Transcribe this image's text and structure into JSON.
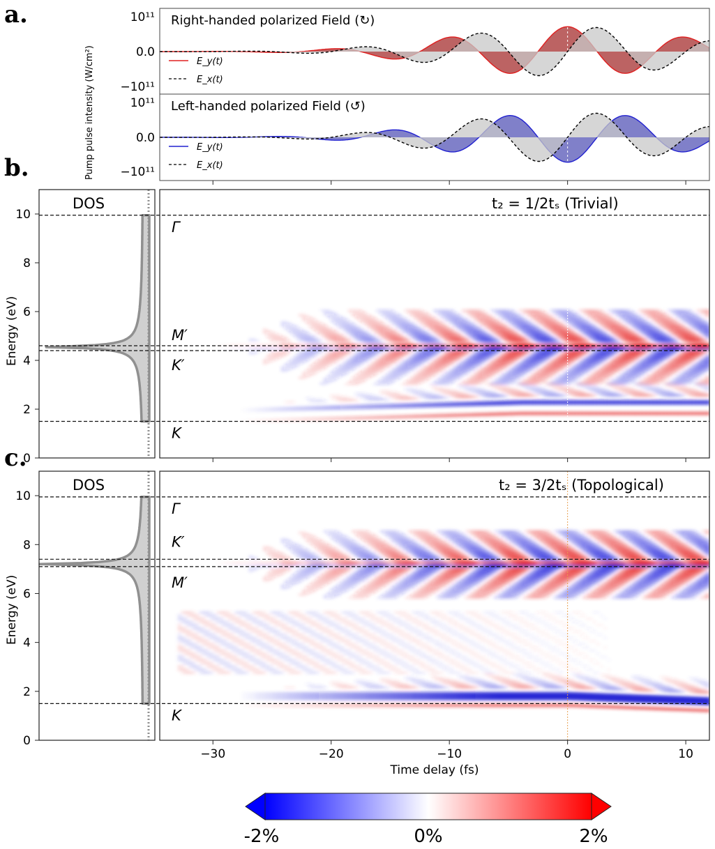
{
  "panel_labels": [
    "a.",
    "b.",
    "c."
  ],
  "chart_data": [
    {
      "type": "line",
      "panel": "a-top",
      "title": "Right-handed polarized Field (↻)",
      "ylabel": "Pump pulse intensity (W/cm²)",
      "y_ticks": [
        "10¹¹",
        "0.0",
        "−10¹¹"
      ],
      "xlim": [
        -34.5,
        12
      ],
      "ylim": [
        -1.4,
        1.4
      ],
      "series": [
        {
          "name": "E_y(t)",
          "color": "#e02020",
          "style": "solid",
          "fill": "#b04848",
          "amplitude": 1.0,
          "period_fs": 10,
          "phase": 0,
          "envelope_center_fs": 0,
          "envelope_width_fs": 10
        },
        {
          "name": "E_x(t)",
          "color": "#000000",
          "style": "dashed",
          "fill": "#c8c8c8",
          "amplitude": 1.0,
          "period_fs": 10,
          "phase": -1.5708,
          "envelope_center_fs": 0,
          "envelope_width_fs": 10
        }
      ],
      "legend": [
        "E_y(t)",
        "E_x(t)"
      ],
      "legend_position": "lower-left"
    },
    {
      "type": "line",
      "panel": "a-bottom",
      "title": "Left-handed polarized Field (↺)",
      "y_ticks": [
        "10¹¹",
        "0.0",
        "−10¹¹"
      ],
      "xlim": [
        -34.5,
        12
      ],
      "ylim": [
        -1.4,
        1.4
      ],
      "series": [
        {
          "name": "E_y(t)",
          "color": "#2020d0",
          "style": "solid",
          "fill": "#6a6ac0",
          "amplitude": 1.0,
          "period_fs": 10,
          "phase": 3.1416,
          "envelope_center_fs": 0,
          "envelope_width_fs": 10
        },
        {
          "name": "E_x(t)",
          "color": "#000000",
          "style": "dashed",
          "fill": "#c8c8c8",
          "amplitude": 1.0,
          "period_fs": 10,
          "phase": -1.5708,
          "envelope_center_fs": 0,
          "envelope_width_fs": 10
        }
      ],
      "legend": [
        "E_y(t)",
        "E_x(t)"
      ],
      "legend_position": "lower-left"
    },
    {
      "type": "heatmap",
      "panel": "b",
      "title": "t₂ = 1/2tₛ (Trivial)",
      "xlabel": "",
      "ylabel": "Energy (eV)",
      "xlim": [
        -34.5,
        12
      ],
      "ylim": [
        0,
        11
      ],
      "y_ticks": [
        0,
        2,
        4,
        6,
        8,
        10
      ],
      "dos_label": "DOS",
      "levels": [
        {
          "label": "Γ",
          "energy": 9.95
        },
        {
          "label": "M′",
          "energy": 4.6
        },
        {
          "label": "K′",
          "energy": 4.4
        },
        {
          "label": "K",
          "energy": 1.5
        }
      ],
      "features": [
        {
          "energy": 4.6,
          "polarity": "mixed",
          "strength": 1.0
        },
        {
          "energy": 2.2,
          "polarity": "blue",
          "strength": 0.9
        },
        {
          "energy": 1.8,
          "polarity": "red",
          "strength": 0.5
        }
      ]
    },
    {
      "type": "heatmap",
      "panel": "c",
      "title": "t₂ = 3/2tₛ (Topological)",
      "xlabel": "Time delay (fs)",
      "ylabel": "Energy (eV)",
      "xlim": [
        -34.5,
        12
      ],
      "ylim": [
        0,
        11
      ],
      "x_ticks": [
        -30,
        -20,
        -10,
        0,
        10
      ],
      "y_ticks": [
        0,
        2,
        4,
        6,
        8,
        10
      ],
      "dos_label": "DOS",
      "levels": [
        {
          "label": "Γ",
          "energy": 9.95
        },
        {
          "label": "K′",
          "energy": 7.4
        },
        {
          "label": "M′",
          "energy": 7.1
        },
        {
          "label": "K",
          "energy": 1.5
        }
      ],
      "features": [
        {
          "energy": 7.2,
          "polarity": "mixed",
          "strength": 1.0
        },
        {
          "energy": 1.8,
          "polarity": "blue",
          "strength": 1.0
        },
        {
          "energy": 1.4,
          "polarity": "red",
          "strength": 0.6
        }
      ]
    }
  ],
  "colorbar": {
    "labels": [
      "-2%",
      "0%",
      "2%"
    ],
    "min_color": "#0000ff",
    "mid_color": "#ffffff",
    "max_color": "#ff0000"
  },
  "tick_labels_x": [
    "−30",
    "−20",
    "−10",
    "0",
    "10"
  ],
  "tick_labels_y": [
    "0",
    "2",
    "4",
    "6",
    "8",
    "10"
  ],
  "zero_delay_marker_color": "#e8a050"
}
